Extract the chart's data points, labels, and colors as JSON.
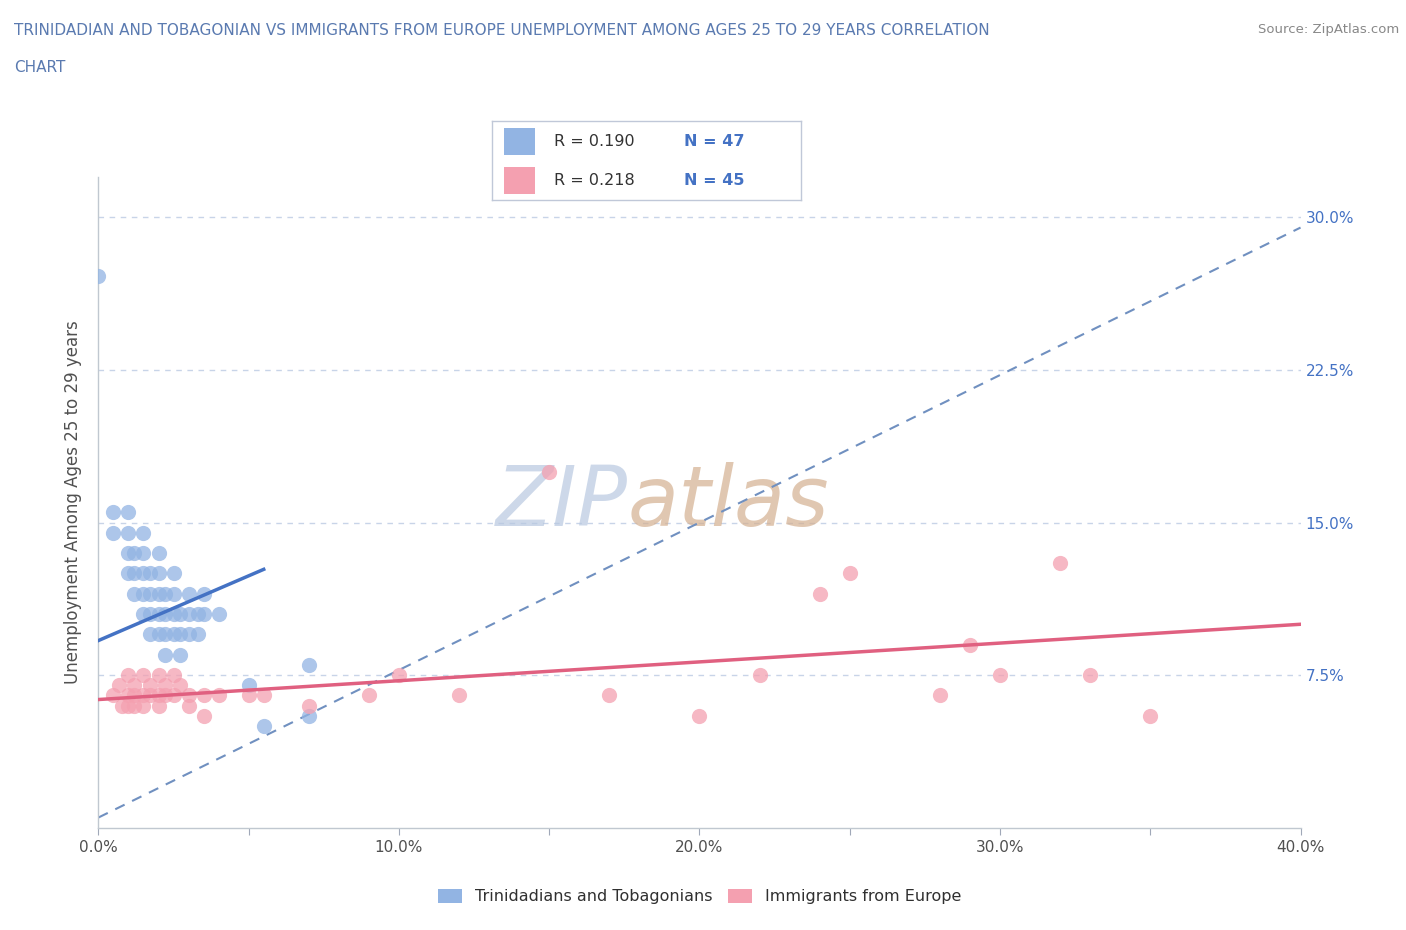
{
  "title_line1": "TRINIDADIAN AND TOBAGONIAN VS IMMIGRANTS FROM EUROPE UNEMPLOYMENT AMONG AGES 25 TO 29 YEARS CORRELATION",
  "title_line2": "CHART",
  "source_text": "Source: ZipAtlas.com",
  "ylabel": "Unemployment Among Ages 25 to 29 years",
  "xlim": [
    0.0,
    0.4
  ],
  "ylim": [
    0.0,
    0.32
  ],
  "xticks": [
    0.0,
    0.05,
    0.1,
    0.15,
    0.2,
    0.25,
    0.3,
    0.35,
    0.4
  ],
  "xticklabels_major": [
    "0.0%",
    "10.0%",
    "20.0%",
    "30.0%",
    "40.0%"
  ],
  "xticklabels_major_pos": [
    0.0,
    0.1,
    0.2,
    0.3,
    0.4
  ],
  "ytick_positions": [
    0.075,
    0.15,
    0.225,
    0.3
  ],
  "ytick_labels_right": [
    "7.5%",
    "15.0%",
    "22.5%",
    "30.0%"
  ],
  "blue_color": "#92b4e3",
  "pink_color": "#f4a0b0",
  "trend_blue_color": "#4472c4",
  "trend_pink_color": "#e06080",
  "trend_dashed_color": "#7090c0",
  "watermark_zip_color": "#b8c8e0",
  "watermark_atlas_color": "#d0a888",
  "title_color": "#5a7ab0",
  "blue_scatter": [
    [
      0.0,
      0.271
    ],
    [
      0.005,
      0.155
    ],
    [
      0.005,
      0.145
    ],
    [
      0.01,
      0.155
    ],
    [
      0.01,
      0.145
    ],
    [
      0.01,
      0.135
    ],
    [
      0.01,
      0.125
    ],
    [
      0.012,
      0.135
    ],
    [
      0.012,
      0.125
    ],
    [
      0.012,
      0.115
    ],
    [
      0.015,
      0.145
    ],
    [
      0.015,
      0.135
    ],
    [
      0.015,
      0.125
    ],
    [
      0.015,
      0.115
    ],
    [
      0.015,
      0.105
    ],
    [
      0.017,
      0.125
    ],
    [
      0.017,
      0.115
    ],
    [
      0.017,
      0.105
    ],
    [
      0.017,
      0.095
    ],
    [
      0.02,
      0.135
    ],
    [
      0.02,
      0.125
    ],
    [
      0.02,
      0.115
    ],
    [
      0.02,
      0.105
    ],
    [
      0.02,
      0.095
    ],
    [
      0.022,
      0.115
    ],
    [
      0.022,
      0.105
    ],
    [
      0.022,
      0.095
    ],
    [
      0.022,
      0.085
    ],
    [
      0.025,
      0.125
    ],
    [
      0.025,
      0.115
    ],
    [
      0.025,
      0.105
    ],
    [
      0.025,
      0.095
    ],
    [
      0.027,
      0.105
    ],
    [
      0.027,
      0.095
    ],
    [
      0.027,
      0.085
    ],
    [
      0.03,
      0.115
    ],
    [
      0.03,
      0.105
    ],
    [
      0.03,
      0.095
    ],
    [
      0.033,
      0.105
    ],
    [
      0.033,
      0.095
    ],
    [
      0.035,
      0.115
    ],
    [
      0.035,
      0.105
    ],
    [
      0.04,
      0.105
    ],
    [
      0.05,
      0.07
    ],
    [
      0.055,
      0.05
    ],
    [
      0.07,
      0.08
    ],
    [
      0.07,
      0.055
    ]
  ],
  "pink_scatter": [
    [
      0.005,
      0.065
    ],
    [
      0.007,
      0.07
    ],
    [
      0.008,
      0.06
    ],
    [
      0.01,
      0.075
    ],
    [
      0.01,
      0.065
    ],
    [
      0.01,
      0.06
    ],
    [
      0.012,
      0.07
    ],
    [
      0.012,
      0.065
    ],
    [
      0.012,
      0.06
    ],
    [
      0.015,
      0.075
    ],
    [
      0.015,
      0.065
    ],
    [
      0.015,
      0.06
    ],
    [
      0.017,
      0.07
    ],
    [
      0.017,
      0.065
    ],
    [
      0.02,
      0.075
    ],
    [
      0.02,
      0.065
    ],
    [
      0.02,
      0.06
    ],
    [
      0.022,
      0.07
    ],
    [
      0.022,
      0.065
    ],
    [
      0.025,
      0.075
    ],
    [
      0.025,
      0.065
    ],
    [
      0.027,
      0.07
    ],
    [
      0.03,
      0.065
    ],
    [
      0.03,
      0.06
    ],
    [
      0.035,
      0.065
    ],
    [
      0.035,
      0.055
    ],
    [
      0.04,
      0.065
    ],
    [
      0.05,
      0.065
    ],
    [
      0.055,
      0.065
    ],
    [
      0.07,
      0.06
    ],
    [
      0.09,
      0.065
    ],
    [
      0.1,
      0.075
    ],
    [
      0.12,
      0.065
    ],
    [
      0.15,
      0.175
    ],
    [
      0.17,
      0.065
    ],
    [
      0.2,
      0.055
    ],
    [
      0.22,
      0.075
    ],
    [
      0.24,
      0.115
    ],
    [
      0.25,
      0.125
    ],
    [
      0.28,
      0.065
    ],
    [
      0.29,
      0.09
    ],
    [
      0.3,
      0.075
    ],
    [
      0.32,
      0.13
    ],
    [
      0.33,
      0.075
    ],
    [
      0.35,
      0.055
    ]
  ],
  "blue_trend_x": [
    0.0,
    0.055
  ],
  "blue_trend_y": [
    0.092,
    0.127
  ],
  "pink_trend_x": [
    0.0,
    0.4
  ],
  "pink_trend_y": [
    0.063,
    0.1
  ],
  "dashed_trend_x": [
    0.0,
    0.4
  ],
  "dashed_trend_y": [
    0.005,
    0.295
  ]
}
